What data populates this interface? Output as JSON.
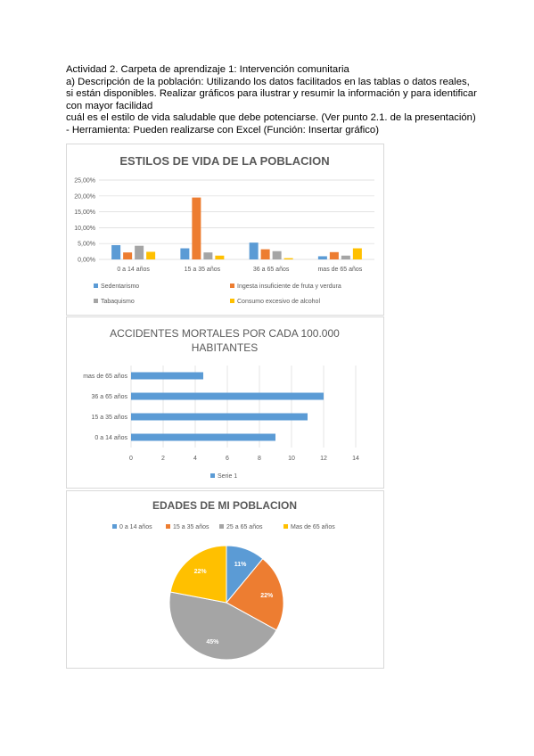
{
  "document": {
    "lines": [
      "Actividad 2. Carpeta de aprendizaje 1: Intervención comunitaria",
      "a) Descripción de la población: Utilizando los datos facilitados en las tablas o datos reales,",
      "si están disponibles. Realizar gráficos para ilustrar y resumir la información y para identificar",
      "con mayor facilidad",
      "cuál es el estilo de vida saludable que debe potenciarse. (Ver punto 2.1. de la presentación)",
      "- Herramienta: Pueden realizarse con Excel (Función: Insertar gráfico)"
    ]
  },
  "chart_data": [
    {
      "type": "bar",
      "title": "ESTILOS DE VIDA DE LA POBLACION",
      "categories": [
        "0 a 14 años",
        "15 a 35 años",
        "36 a 65 años",
        "mas de 65 años"
      ],
      "y_ticks": [
        "0,00%",
        "5,00%",
        "10,00%",
        "15,00%",
        "20,00%",
        "25,00%"
      ],
      "ylim": [
        0,
        25
      ],
      "grid": true,
      "legend_position": "bottom",
      "series": [
        {
          "name": "Sedentarismo",
          "color": "#5b9bd5",
          "values": [
            4.5,
            3.5,
            5.3,
            1.0
          ]
        },
        {
          "name": "Ingesta insuficiente de fruta y verdura",
          "color": "#ed7d31",
          "values": [
            2.2,
            19.5,
            3.2,
            2.3
          ]
        },
        {
          "name": "Tabaquismo",
          "color": "#a5a5a5",
          "values": [
            4.3,
            2.2,
            2.6,
            1.2
          ]
        },
        {
          "name": "Consumo excesivo de alcohol",
          "color": "#ffc000",
          "values": [
            2.4,
            1.2,
            0.4,
            3.5
          ]
        }
      ]
    },
    {
      "type": "bar",
      "orientation": "horizontal",
      "title_lines": [
        "ACCIDENTES MORTALES POR CADA 100.000",
        "HABITANTES"
      ],
      "categories": [
        "0 a 14 años",
        "15 a 35 años",
        "36 a 65 años",
        "mas de 65 años"
      ],
      "x_ticks": [
        "0",
        "2",
        "4",
        "6",
        "8",
        "10",
        "12",
        "14"
      ],
      "xlim": [
        0,
        14
      ],
      "grid": true,
      "legend_position": "bottom",
      "series": [
        {
          "name": "Serie 1",
          "color": "#5b9bd5",
          "values": [
            9,
            11,
            12,
            4.5
          ]
        }
      ]
    },
    {
      "type": "pie",
      "title": "EDADES DE MI POBLACION",
      "legend_position": "top",
      "slices": [
        {
          "label": "0 a 14 años",
          "value": 11,
          "display": "11%",
          "color": "#5b9bd5"
        },
        {
          "label": "15 a 35 años",
          "value": 22,
          "display": "22%",
          "color": "#ed7d31"
        },
        {
          "label": "25 a 65 años",
          "value": 45,
          "display": "45%",
          "color": "#a5a5a5"
        },
        {
          "label": "Mas de 65 años",
          "value": 22,
          "display": "22%",
          "color": "#ffc000"
        }
      ]
    }
  ]
}
